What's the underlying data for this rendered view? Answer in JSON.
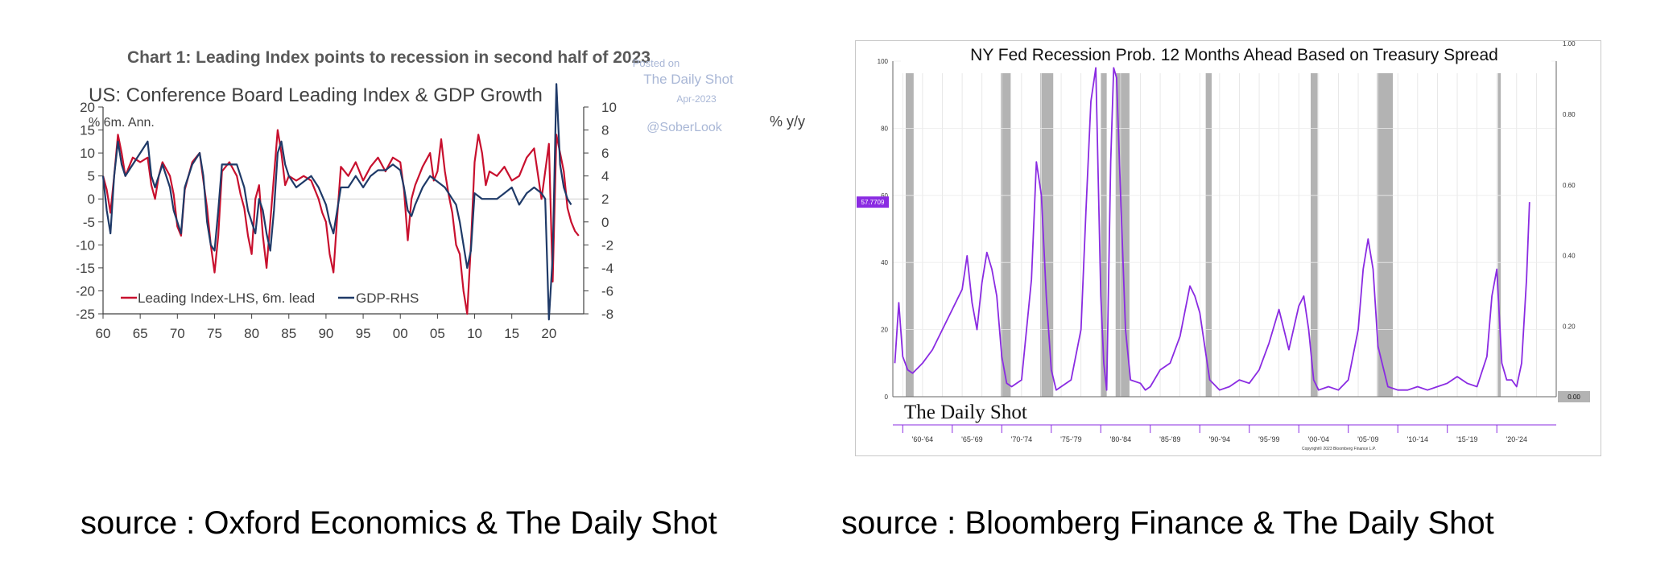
{
  "captions": {
    "left": "source : Oxford Economics & The Daily Shot",
    "right": "source : Bloomberg Finance & The Daily Shot"
  },
  "watermark": {
    "line1": "Posted on",
    "line2": "The Daily Shot",
    "line3": "Apr-2023",
    "line4": "@SoberLook"
  },
  "chart_data": [
    {
      "type": "line",
      "title": "Chart 1: Leading Index points to recession in second half of 2023",
      "subtitle": "US: Conference Board Leading Index & GDP Growth",
      "ylabel_left": "% 6m. Ann.",
      "ylabel_right": "% y/y",
      "ylim_left": [
        -25,
        20
      ],
      "ylim_right": [
        -8,
        10
      ],
      "xlim": [
        1960,
        2025
      ],
      "x_tick_labels": [
        "60",
        "65",
        "70",
        "75",
        "80",
        "85",
        "90",
        "95",
        "00",
        "05",
        "10",
        "15",
        "20"
      ],
      "y_tick_labels_left": [
        "20",
        "15",
        "10",
        "5",
        "0",
        "-5",
        "-10",
        "-15",
        "-20",
        "-25"
      ],
      "y_tick_labels_right": [
        "10",
        "8",
        "6",
        "4",
        "2",
        "0",
        "-2",
        "-4",
        "-6",
        "-8"
      ],
      "grid": false,
      "legend_position": "bottom-left",
      "colors": {
        "leading": "#c8102e",
        "gdp": "#1f3a68"
      },
      "series": [
        {
          "name": "Leading Index-LHS, 6m. lead",
          "axis": "left",
          "x": [
            1960,
            1960.5,
            1961,
            1961.5,
            1962,
            1962.5,
            1963,
            1964,
            1965,
            1966,
            1966.5,
            1967,
            1967.5,
            1968,
            1969,
            1969.5,
            1970,
            1970.5,
            1971,
            1972,
            1973,
            1973.5,
            1974,
            1974.5,
            1975,
            1975.5,
            1976,
            1977,
            1978,
            1978.5,
            1979,
            1979.5,
            1980,
            1980.5,
            1981,
            1981.5,
            1982,
            1982.5,
            1983,
            1983.5,
            1984,
            1984.5,
            1985,
            1986,
            1987,
            1988,
            1989,
            1989.5,
            1990,
            1990.5,
            1991,
            1991.5,
            1992,
            1993,
            1994,
            1995,
            1996,
            1997,
            1998,
            1999,
            2000,
            2000.5,
            2001,
            2001.5,
            2002,
            2003,
            2004,
            2004.5,
            2005,
            2005.5,
            2006,
            2006.5,
            2007,
            2007.5,
            2008,
            2008.5,
            2009,
            2009.5,
            2010,
            2010.5,
            2011,
            2011.5,
            2012,
            2013,
            2014,
            2015,
            2016,
            2017,
            2018,
            2019,
            2019.5,
            2020,
            2020.5,
            2021,
            2021.5,
            2022,
            2022.5,
            2023,
            2023.5,
            2024
          ],
          "values": [
            5,
            2,
            -3,
            5,
            14,
            10,
            5,
            9,
            8,
            9,
            3,
            0,
            5,
            8,
            5,
            1,
            -6,
            -8,
            2,
            8,
            10,
            4,
            -2,
            -10,
            -16,
            -8,
            6,
            8,
            5,
            1,
            -2,
            -8,
            -12,
            0,
            3,
            -8,
            -15,
            -5,
            5,
            15,
            10,
            3,
            5,
            4,
            5,
            4,
            0,
            -3,
            -5,
            -12,
            -16,
            -4,
            7,
            5,
            8,
            4,
            7,
            9,
            6,
            9,
            8,
            2,
            -9,
            0,
            3,
            7,
            10,
            4,
            6,
            13,
            6,
            1,
            -3,
            -10,
            -12,
            -20,
            -25,
            -10,
            8,
            14,
            10,
            3,
            6,
            5,
            7,
            4,
            5,
            9,
            11,
            0,
            6,
            12,
            -18,
            14,
            10,
            6,
            -2,
            -5,
            -7,
            -8
          ]
        },
        {
          "name": "GDP-RHS",
          "axis": "right",
          "x": [
            1960,
            1960.5,
            1961,
            1961.5,
            1962,
            1962.5,
            1963,
            1964,
            1965,
            1966,
            1966.5,
            1967,
            1968,
            1969,
            1969.5,
            1970,
            1970.5,
            1971,
            1972,
            1973,
            1973.5,
            1974,
            1974.5,
            1975,
            1975.5,
            1976,
            1977,
            1978,
            1978.5,
            1979,
            1979.5,
            1980,
            1980.5,
            1981,
            1981.5,
            1982,
            1982.5,
            1983,
            1983.5,
            1984,
            1984.5,
            1985,
            1986,
            1987,
            1988,
            1989,
            1990,
            1990.5,
            1991,
            1991.5,
            1992,
            1993,
            1994,
            1995,
            1996,
            1997,
            1998,
            1999,
            2000,
            2000.5,
            2001,
            2001.5,
            2002,
            2003,
            2004,
            2005,
            2006,
            2007,
            2007.5,
            2008,
            2008.5,
            2009,
            2009.5,
            2010,
            2011,
            2012,
            2013,
            2014,
            2015,
            2016,
            2017,
            2018,
            2019,
            2019.5,
            2020,
            2020.5,
            2021,
            2021.5,
            2022,
            2022.5,
            2023
          ],
          "values": [
            4,
            1,
            -1,
            4,
            7,
            5,
            4,
            5,
            6,
            7,
            4,
            3,
            5,
            3,
            1,
            0,
            -1,
            3,
            5,
            6,
            4,
            0,
            -2,
            -2.5,
            1,
            5,
            5,
            5,
            4,
            3,
            1,
            0,
            -1,
            2,
            1,
            -1,
            -2.5,
            1,
            6,
            7,
            5,
            4,
            3,
            3.5,
            4,
            3,
            1.5,
            0,
            -1,
            1,
            3,
            3,
            4,
            3,
            4,
            4.5,
            4.5,
            5,
            4.5,
            3,
            1,
            0.5,
            1.5,
            3,
            4,
            3.5,
            3,
            2,
            1.5,
            0,
            -2,
            -4,
            -2.5,
            2.5,
            2,
            2,
            2,
            2.5,
            3,
            1.5,
            2.5,
            3,
            2.5,
            2,
            -8.5,
            -3,
            12,
            5,
            3,
            2,
            1.5
          ]
        }
      ]
    },
    {
      "type": "line",
      "title": "NY Fed Recession Prob. 12 Months Ahead Based on Treasury Spread",
      "ylim_left": [
        0,
        100
      ],
      "ylim_right": [
        0,
        1.0
      ],
      "xlim": [
        1959,
        2026
      ],
      "y_tick_labels_left": [
        "100",
        "80",
        "60",
        "40",
        "20",
        "0"
      ],
      "y_tick_labels_right": [
        "1.00",
        "0.80",
        "0.60",
        "0.40",
        "0.20",
        "0.00"
      ],
      "x_tick_labels": [
        "'60-'64",
        "'65-'69",
        "'70-'74",
        "'75-'79",
        "'80-'84",
        "'85-'89",
        "'90-'94",
        "'95-'99",
        "'00-'04",
        "'05-'09",
        "'10-'14",
        "'15-'19",
        "'20-'24"
      ],
      "last_value_label": "57.7709",
      "right_axis_value_label": "0.00",
      "copyright": "Copyright© 2023 Bloomberg Finance L.P.",
      "logo_text": "The Daily Shot",
      "grid": true,
      "colors": {
        "line": "#8a2be2",
        "recession": "#b3b3b3",
        "label_bg": "#8a2be2"
      },
      "recession_periods": [
        [
          1960.3,
          1961.1
        ],
        [
          1969.9,
          1970.9
        ],
        [
          1973.9,
          1975.2
        ],
        [
          1980.0,
          1980.6
        ],
        [
          1981.5,
          1982.9
        ],
        [
          1990.6,
          1991.2
        ],
        [
          2001.2,
          2001.9
        ],
        [
          2007.9,
          2009.5
        ],
        [
          2020.1,
          2020.4
        ]
      ],
      "series": [
        {
          "name": "",
          "x": [
            1959.2,
            1959.6,
            1960,
            1960.5,
            1961,
            1962,
            1963,
            1964,
            1965,
            1966,
            1966.5,
            1967,
            1967.5,
            1968,
            1968.5,
            1969,
            1969.5,
            1970,
            1970.5,
            1971,
            1972,
            1973,
            1973.5,
            1974,
            1974.5,
            1975,
            1975.5,
            1976,
            1977,
            1978,
            1978.5,
            1979,
            1979.5,
            1980,
            1980.3,
            1980.6,
            1981,
            1981.3,
            1981.6,
            1982,
            1982.5,
            1983,
            1984,
            1984.5,
            1985,
            1986,
            1987,
            1988,
            1989,
            1989.5,
            1990,
            1990.5,
            1991,
            1992,
            1993,
            1994,
            1995,
            1996,
            1997,
            1998,
            1998.5,
            1999,
            2000,
            2000.5,
            2001,
            2001.5,
            2002,
            2003,
            2004,
            2005,
            2006,
            2006.5,
            2007,
            2007.5,
            2008,
            2009,
            2010,
            2011,
            2012,
            2013,
            2014,
            2015,
            2016,
            2017,
            2018,
            2019,
            2019.5,
            2020,
            2020.5,
            2021,
            2021.5,
            2022,
            2022.5,
            2023,
            2023.3
          ],
          "values": [
            10,
            28,
            12,
            8,
            7,
            10,
            14,
            20,
            26,
            32,
            42,
            28,
            20,
            34,
            43,
            38,
            30,
            12,
            4,
            3,
            5,
            35,
            70,
            60,
            30,
            8,
            2,
            3,
            5,
            20,
            55,
            88,
            98,
            30,
            10,
            2,
            70,
            98,
            95,
            60,
            20,
            5,
            4,
            2,
            3,
            8,
            10,
            18,
            33,
            30,
            25,
            15,
            5,
            2,
            3,
            5,
            4,
            8,
            16,
            26,
            20,
            14,
            27,
            30,
            20,
            5,
            2,
            3,
            2,
            5,
            20,
            38,
            47,
            38,
            15,
            3,
            2,
            2,
            3,
            2,
            3,
            4,
            6,
            4,
            3,
            12,
            30,
            38,
            10,
            5,
            5,
            3,
            10,
            35,
            58
          ]
        }
      ]
    }
  ]
}
